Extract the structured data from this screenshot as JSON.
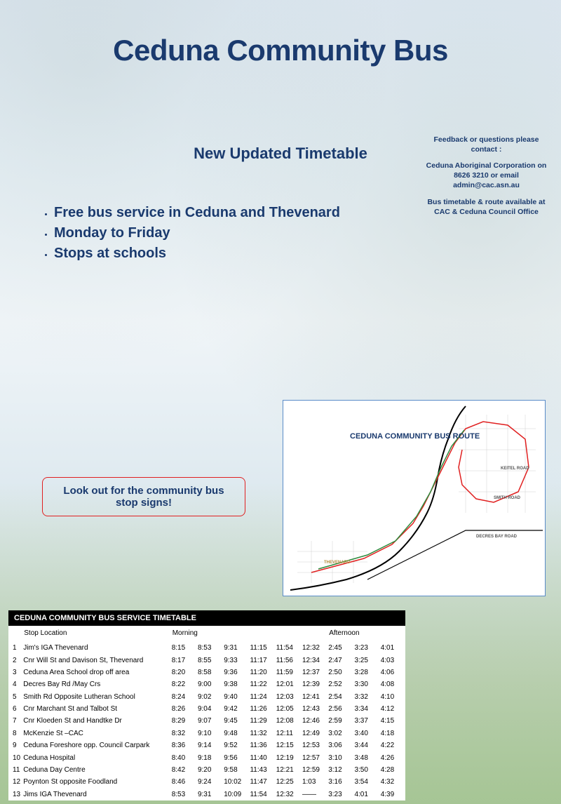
{
  "colors": {
    "navy": "#1a3a6e",
    "callout_border": "#e02020",
    "callout_text": "#1a3a6e",
    "map_border": "#5a8cc8",
    "route_red": "#e02020",
    "route_green": "#2e8b3e",
    "map_text": "#1a3a6e"
  },
  "title": "Ceduna Community Bus",
  "subtitle": "New Updated Timetable",
  "bullets": [
    "Free bus service in Ceduna and Thevenard",
    "Monday to Friday",
    "Stops at schools"
  ],
  "callout_text": "Look out for the community bus stop signs!",
  "map": {
    "title": "CEDUNA COMMUNITY BUS ROUTE",
    "labels": [
      "KEITEL ROAD",
      "SMITH ROAD",
      "DECRES BAY ROAD",
      "THEVENARD"
    ]
  },
  "timetable": {
    "header": "CEDUNA COMMUNITY BUS SERVICE TIMETABLE",
    "col_headers": {
      "stop": "Stop Location",
      "morning": "Morning",
      "afternoon": "Afternoon"
    },
    "rows": [
      {
        "n": "1",
        "loc": "Jim's IGA Thevenard",
        "t": [
          "8:15",
          "8:53",
          "9:31",
          "11:15",
          "11:54",
          "12:32",
          "2:45",
          "3:23",
          "4:01"
        ]
      },
      {
        "n": "2",
        "loc": "Cnr Will St  and Davison St, Thevenard",
        "t": [
          "8:17",
          "8:55",
          "9:33",
          "11:17",
          "11:56",
          "12:34",
          "2:47",
          "3:25",
          "4:03"
        ]
      },
      {
        "n": "3",
        "loc": "Ceduna Area School drop off area",
        "t": [
          "8:20",
          "8:58",
          "9:36",
          "11:20",
          "11:59",
          "12:37",
          "2:50",
          "3:28",
          "4:06"
        ]
      },
      {
        "n": "4",
        "loc": "Decres Bay Rd /May Crs",
        "t": [
          "8:22",
          "9:00",
          "9:38",
          "11:22",
          "12:01",
          "12:39",
          "2:52",
          "3:30",
          "4:08"
        ]
      },
      {
        "n": "5",
        "loc": "Smith Rd Opposite Lutheran School",
        "t": [
          "8:24",
          "9:02",
          "9:40",
          "11:24",
          "12:03",
          "12:41",
          "2:54",
          "3:32",
          "4:10"
        ]
      },
      {
        "n": "6",
        "loc": "Cnr Marchant St and Talbot St",
        "t": [
          "8:26",
          "9:04",
          "9:42",
          "11:26",
          "12:05",
          "12:43",
          "2:56",
          "3:34",
          "4:12"
        ]
      },
      {
        "n": "7",
        "loc": "Cnr Kloeden St and Handtke Dr",
        "t": [
          "8:29",
          "9:07",
          "9:45",
          "11:29",
          "12:08",
          "12:46",
          "2:59",
          "3:37",
          "4:15"
        ]
      },
      {
        "n": "8",
        "loc": "McKenzie St –CAC",
        "t": [
          "8:32",
          "9:10",
          "9:48",
          "11:32",
          "12:11",
          "12:49",
          "3:02",
          "3:40",
          "4:18"
        ]
      },
      {
        "n": "9",
        "loc": "Ceduna Foreshore opp. Council Carpark",
        "t": [
          "8:36",
          "9:14",
          "9:52",
          "11:36",
          "12:15",
          "12:53",
          "3:06",
          "3:44",
          "4:22"
        ]
      },
      {
        "n": "10",
        "loc": "Ceduna Hospital",
        "t": [
          "8:40",
          "9:18",
          "9:56",
          "11:40",
          "12:19",
          "12:57",
          "3:10",
          "3:48",
          "4:26"
        ]
      },
      {
        "n": "11",
        "loc": "Ceduna Day Centre",
        "t": [
          "8:42",
          "9:20",
          "9:58",
          "11:43",
          "12:21",
          "12:59",
          "3:12",
          "3:50",
          "4:28"
        ]
      },
      {
        "n": "12",
        "loc": "Poynton St opposite Foodland",
        "t": [
          "8:46",
          "9:24",
          "10:02",
          "11:47",
          "12:25",
          "1:03",
          "3:16",
          "3:54",
          "4:32"
        ]
      },
      {
        "n": "13",
        "loc": "Jims IGA Thevenard",
        "t": [
          "8:53",
          "9:31",
          "10:09",
          "11:54",
          "12:32",
          "——",
          "3:23",
          "4:01",
          "4:39"
        ]
      }
    ]
  },
  "contact": {
    "line1": "Feedback or questions please contact :",
    "line2": "Ceduna Aboriginal Corporation on 8626 3210 or email admin@cac.asn.au",
    "line3": "Bus timetable & route available at CAC & Ceduna Council Office"
  }
}
